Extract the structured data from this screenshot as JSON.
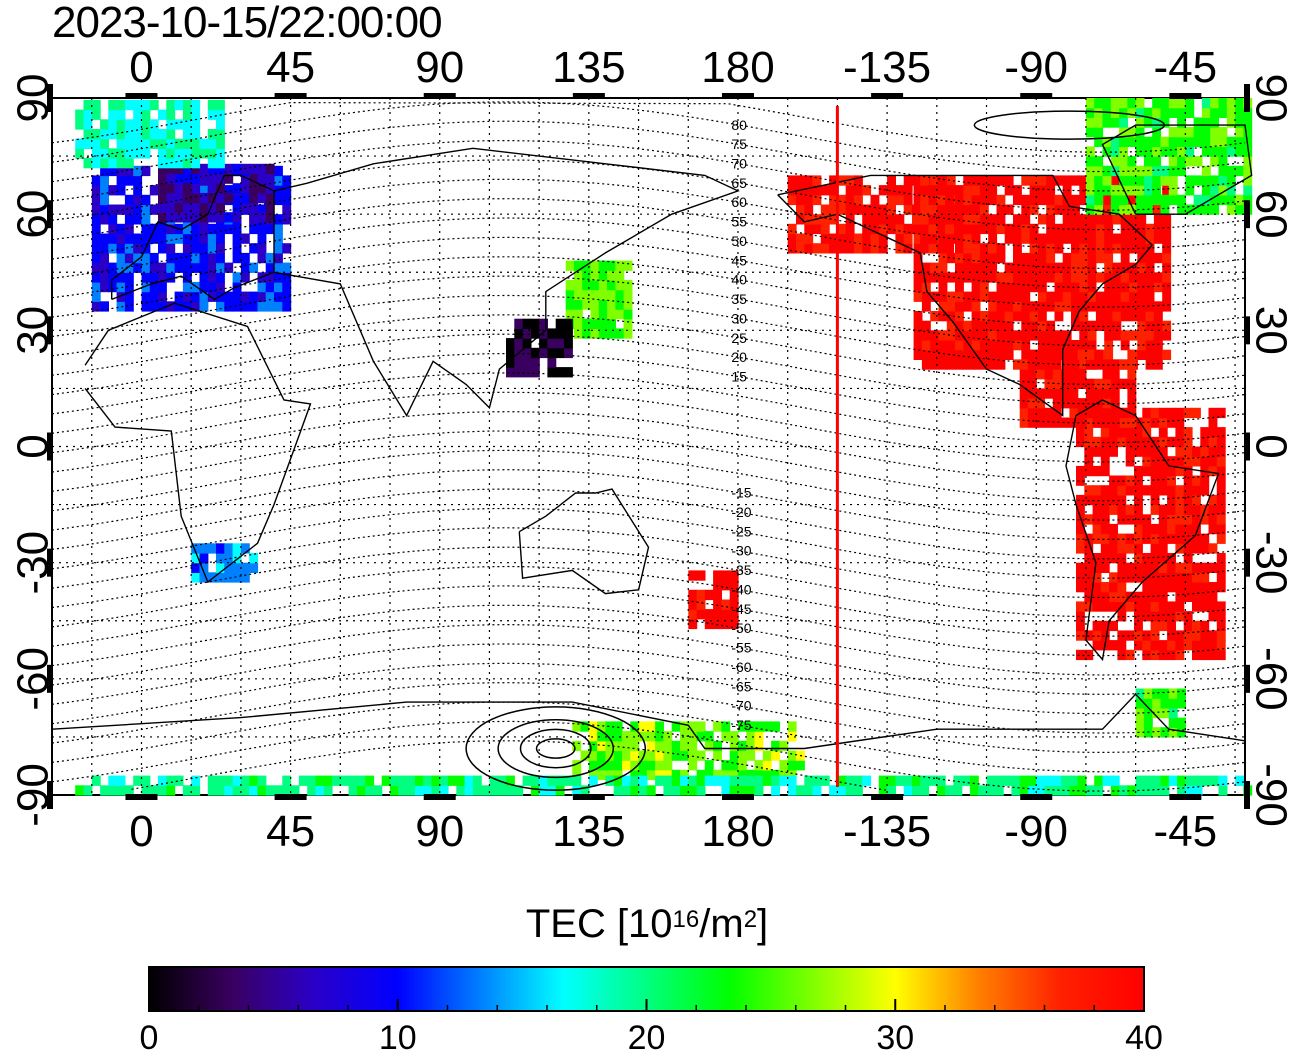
{
  "timestamp": "2023-10-15/22:00:00",
  "axes": {
    "top_lon_labels": [
      "0",
      "45",
      "90",
      "135",
      "180",
      "-135",
      "-90",
      "-45"
    ],
    "bottom_lon_labels": [
      "0",
      "45",
      "90",
      "135",
      "180",
      "-135",
      "-90",
      "-45"
    ],
    "left_lat_labels": [
      "90",
      "60",
      "30",
      "0",
      "-30",
      "-60",
      "-90"
    ],
    "right_lat_labels": [
      "90",
      "60",
      "30",
      "0",
      "-30",
      "-60",
      "-90"
    ],
    "lon_range": [
      -27,
      333
    ],
    "lat_range": [
      -90,
      90
    ],
    "grid": true,
    "grid_step_deg": 15
  },
  "magnetic_latitude_labels": {
    "north": [
      "80",
      "75",
      "70",
      "65",
      "60",
      "55",
      "50",
      "45",
      "40",
      "35",
      "30",
      "25",
      "20",
      "15"
    ],
    "south": [
      "-15",
      "-20",
      "-25",
      "-30",
      "-35",
      "-40",
      "-45",
      "-50",
      "-55",
      "-60",
      "-65",
      "-70",
      "-75"
    ]
  },
  "subsolar_meridian_lon": 210,
  "colorbar": {
    "title_main": "TEC  [10",
    "title_exp1": "16",
    "title_mid": "/m",
    "title_exp2": "2",
    "title_end": "]",
    "min": 0,
    "max": 40,
    "tick_labels": [
      "0",
      "10",
      "20",
      "30",
      "40"
    ],
    "colors": [
      "#000000",
      "#3a0060",
      "#2a00c8",
      "#0000ff",
      "#0080ff",
      "#00ffff",
      "#00ff80",
      "#00ff00",
      "#80ff00",
      "#ffff00",
      "#ff8000",
      "#ff2000",
      "#ff0000"
    ]
  },
  "tec_regions": [
    {
      "name": "north-america",
      "lon": [
        233,
        310
      ],
      "lat": [
        20,
        68
      ],
      "tec": 40
    },
    {
      "name": "alaska-canada-west",
      "lon": [
        195,
        245
      ],
      "lat": [
        50,
        70
      ],
      "tec": 39
    },
    {
      "name": "south-america",
      "lon": [
        282,
        325
      ],
      "lat": [
        -55,
        10
      ],
      "tec": 40
    },
    {
      "name": "caribbean",
      "lon": [
        265,
        300
      ],
      "lat": [
        5,
        25
      ],
      "tec": 40
    },
    {
      "name": "greenland-arctic",
      "lon": [
        285,
        333
      ],
      "lat": [
        60,
        88
      ],
      "tec": 24
    },
    {
      "name": "europe",
      "lon": [
        -15,
        45
      ],
      "lat": [
        35,
        72
      ],
      "tec": 10
    },
    {
      "name": "scandinavia",
      "lon": [
        5,
        40
      ],
      "lat": [
        58,
        72
      ],
      "tec": 6
    },
    {
      "name": "arctic-europe",
      "lon": [
        -20,
        25
      ],
      "lat": [
        72,
        88
      ],
      "tec": 18
    },
    {
      "name": "japan",
      "lon": [
        128,
        146
      ],
      "lat": [
        28,
        46
      ],
      "tec": 25
    },
    {
      "name": "china-east",
      "lon": [
        110,
        128
      ],
      "lat": [
        18,
        32
      ],
      "tec": 2
    },
    {
      "name": "new-zealand",
      "lon": [
        165,
        180
      ],
      "lat": [
        -47,
        -34
      ],
      "tec": 40
    },
    {
      "name": "south-africa",
      "lon": [
        15,
        35
      ],
      "lat": [
        -35,
        -26
      ],
      "tec": 14
    },
    {
      "name": "antarctica-ross",
      "lon": [
        130,
        200
      ],
      "lat": [
        -86,
        -72
      ],
      "tec": 26
    },
    {
      "name": "antarctica-rim",
      "lon": [
        300,
        315
      ],
      "lat": [
        -75,
        -63
      ],
      "tec": 24
    },
    {
      "name": "south-pole-band",
      "lon": [
        -20,
        333
      ],
      "lat": [
        -90,
        -86
      ],
      "tec": 20
    }
  ]
}
